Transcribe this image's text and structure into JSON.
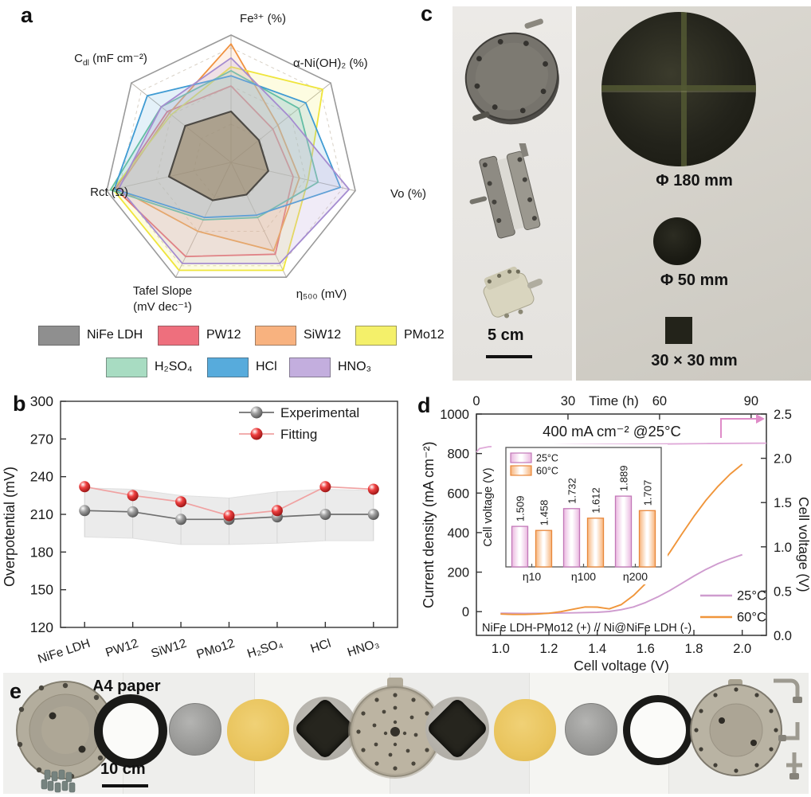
{
  "panel_labels": {
    "a": "a",
    "b": "b",
    "c": "c",
    "d": "d",
    "e": "e"
  },
  "chart_data": [
    {
      "id": "radar",
      "type": "radar",
      "axes": [
        "Fe³⁺ (%)",
        "α-Ni(OH)₂ (%)",
        "Vo (%)",
        "η₅₀₀ (mV)",
        "Tafel Slope\n(mV dec⁻¹)",
        "Rct (Ω)",
        "C_{dl} (mF cm⁻²)"
      ],
      "scale": [
        0,
        1
      ],
      "grid_levels": [
        0.3,
        0.6,
        0.9
      ],
      "legend_rows": [
        [
          0,
          1,
          2,
          3
        ],
        [
          4,
          5,
          6
        ]
      ],
      "series": [
        {
          "name": "NiFe LDH",
          "color": "#4d4a45",
          "swatch": "#8f8f8f",
          "fill": "rgba(140,115,80,0.5)",
          "values": [
            0.4,
            0.28,
            0.3,
            0.28,
            0.33,
            0.5,
            0.46
          ]
        },
        {
          "name": "PW12",
          "color": "#e8566a",
          "swatch": "#ee6f7d",
          "fill": "rgba(238,111,125,0.10)",
          "values": [
            0.6,
            0.42,
            0.5,
            0.8,
            0.82,
            0.93,
            0.64
          ]
        },
        {
          "name": "SiW12",
          "color": "#f0913f",
          "swatch": "#f8b27f",
          "fill": "rgba(248,178,127,0.18)",
          "values": [
            0.93,
            0.47,
            0.55,
            0.77,
            0.6,
            0.91,
            0.62
          ]
        },
        {
          "name": "PMo12",
          "color": "#efe53c",
          "swatch": "#f4f06a",
          "fill": "rgba(244,240,106,0.20)",
          "values": [
            0.75,
            0.92,
            0.62,
            0.94,
            0.94,
            0.95,
            0.6
          ]
        },
        {
          "name": "H₂SO₄",
          "color": "#67c39b",
          "swatch": "#a8dcc2",
          "fill": "rgba(168,220,194,0.22)",
          "values": [
            0.72,
            0.68,
            0.7,
            0.48,
            0.5,
            0.97,
            0.7
          ]
        },
        {
          "name": "HCl",
          "color": "#3f9bd3",
          "swatch": "#57abdc",
          "fill": "rgba(87,171,220,0.16)",
          "values": [
            0.68,
            0.75,
            0.88,
            0.46,
            0.48,
            0.94,
            0.84
          ]
        },
        {
          "name": "HNO₃",
          "color": "#a58cd0",
          "swatch": "#c3aede",
          "fill": "rgba(195,174,222,0.25)",
          "values": [
            0.82,
            0.58,
            0.95,
            0.88,
            0.88,
            0.9,
            0.7
          ]
        }
      ]
    },
    {
      "id": "overpotential",
      "type": "line",
      "ylabel": "Overpotential (mV)",
      "ylim": [
        120,
        300
      ],
      "yticks": [
        120,
        150,
        180,
        210,
        240,
        270,
        300
      ],
      "categories": [
        "NiFe LDH",
        "PW12",
        "SiW12",
        "PMo12",
        "H₂SO₄",
        "HCl",
        "HNO₃"
      ],
      "series": [
        {
          "name": "Experimental",
          "line_color": "#6f6f6f",
          "marker": "gray",
          "values": [
            213,
            212,
            206,
            206,
            208,
            210,
            210
          ]
        },
        {
          "name": "Fitting",
          "line_color": "#f0a2a2",
          "marker": "red",
          "values": [
            232,
            225,
            220,
            209,
            213,
            232,
            230
          ]
        }
      ],
      "band_upper": [
        231,
        230,
        225,
        223,
        228,
        230,
        229
      ],
      "band_lower": [
        192,
        191,
        186,
        186,
        187,
        189,
        189
      ],
      "legend_position": "top-right"
    },
    {
      "id": "polarization",
      "type": "line",
      "xlabel": "Cell voltage (V)",
      "ylabel_left": "Current density (mA cm⁻²)",
      "ylabel_right": "Cell voltage (V)",
      "xlabel_top": "Time (h)",
      "xlim": [
        0.9,
        2.1
      ],
      "xticks": [
        "1.0",
        "1.2",
        "1.4",
        "1.6",
        "1.8",
        "2.0"
      ],
      "ylim_left": [
        -120,
        1000
      ],
      "yticks_left": [
        0,
        200,
        400,
        600,
        800,
        1000
      ],
      "xlim_top": [
        0,
        95
      ],
      "xticks_top": [
        0,
        30,
        60,
        90
      ],
      "ylim_right": [
        0,
        2.5
      ],
      "yticks_right": [
        "0.0",
        "0.5",
        "1.0",
        "1.5",
        "2.0",
        "2.5"
      ],
      "annotation": "400 mA cm⁻² @25°C",
      "annotation_color": "#df8cc8",
      "cell_label": "NiFe LDH-PMo12 (+) // Ni@NiFe LDH (-)",
      "series": [
        {
          "name": "25°C",
          "color": "#cf9ccf",
          "points": [
            [
              1.0,
              -8
            ],
            [
              1.1,
              -9
            ],
            [
              1.2,
              -8
            ],
            [
              1.3,
              -6
            ],
            [
              1.4,
              -3
            ],
            [
              1.45,
              1
            ],
            [
              1.5,
              10
            ],
            [
              1.55,
              24
            ],
            [
              1.6,
              46
            ],
            [
              1.65,
              74
            ],
            [
              1.7,
              107
            ],
            [
              1.75,
              143
            ],
            [
              1.8,
              180
            ],
            [
              1.85,
              214
            ],
            [
              1.9,
              243
            ],
            [
              1.95,
              267
            ],
            [
              2.0,
              288
            ]
          ]
        },
        {
          "name": "60°C",
          "color": "#f0953a",
          "points": [
            [
              1.0,
              -12
            ],
            [
              1.05,
              -14
            ],
            [
              1.1,
              -14
            ],
            [
              1.15,
              -12
            ],
            [
              1.2,
              -8
            ],
            [
              1.25,
              0
            ],
            [
              1.3,
              12
            ],
            [
              1.35,
              24
            ],
            [
              1.4,
              23
            ],
            [
              1.45,
              14
            ],
            [
              1.5,
              36
            ],
            [
              1.55,
              82
            ],
            [
              1.6,
              142
            ],
            [
              1.65,
              216
            ],
            [
              1.7,
              300
            ],
            [
              1.75,
              392
            ],
            [
              1.8,
              482
            ],
            [
              1.85,
              564
            ],
            [
              1.9,
              634
            ],
            [
              1.95,
              696
            ],
            [
              2.0,
              746
            ]
          ]
        }
      ],
      "stability": {
        "label": "400 mA cm⁻² @25°C",
        "color": "#dfa8d8",
        "points": [
          [
            0,
            2.07
          ],
          [
            1,
            2.11
          ],
          [
            4,
            2.13
          ],
          [
            10,
            2.14
          ],
          [
            20,
            2.148
          ],
          [
            30,
            2.152
          ],
          [
            45,
            2.157
          ],
          [
            60,
            2.161
          ],
          [
            75,
            2.166
          ],
          [
            90,
            2.17
          ],
          [
            95,
            2.171
          ]
        ]
      },
      "inset": {
        "type": "bar",
        "ylabel": "Cell voltage (V)",
        "categories": [
          "η10",
          "η100",
          "η200"
        ],
        "ylim": [
          1.0,
          2.5
        ],
        "series": [
          {
            "name": "25°C",
            "edge": "#c279b8",
            "fill_edge": "#eab7e0",
            "values": [
              1.509,
              1.732,
              1.889
            ]
          },
          {
            "name": "60°C",
            "edge": "#e8873a",
            "fill_edge": "#f7b379",
            "values": [
              1.458,
              1.612,
              1.707
            ]
          }
        ]
      }
    }
  ],
  "panel_c": {
    "label_large": "Φ 180 mm",
    "label_mid": "Φ 50 mm",
    "label_small": "30 × 30 mm",
    "scale_bar": "5 cm"
  },
  "panel_e": {
    "a4_label": "A4 paper",
    "scale_bar": "10 cm"
  }
}
